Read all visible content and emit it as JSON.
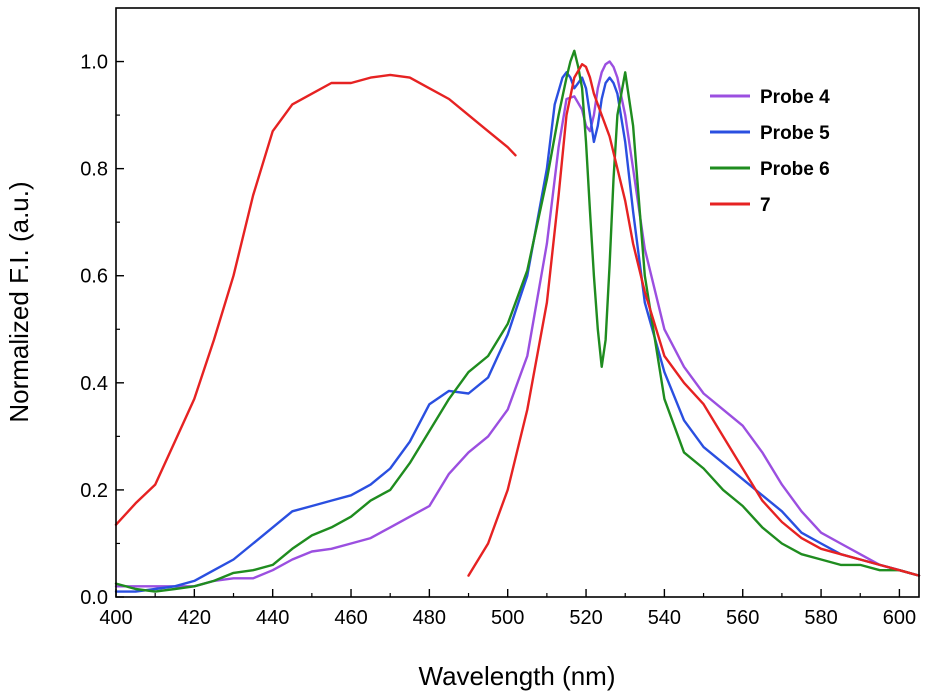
{
  "chart_data": {
    "type": "line",
    "title": "",
    "xlabel": "Wavelength (nm)",
    "ylabel": "Normalized F.I. (a.u.)",
    "xlim": [
      400,
      605
    ],
    "ylim": [
      0,
      1.1
    ],
    "xticks": [
      400,
      420,
      440,
      460,
      480,
      500,
      520,
      540,
      560,
      580,
      600
    ],
    "yticks": [
      0.0,
      0.2,
      0.4,
      0.6,
      0.8,
      1.0
    ],
    "ytick_labels": [
      "0.0",
      "0.2",
      "0.4",
      "0.6",
      "0.8",
      "1.0"
    ],
    "grid": false,
    "legend_position": "top-right",
    "series": [
      {
        "name": "Probe 4",
        "color": "#9b4fe0",
        "x": [
          400,
          405,
          410,
          415,
          420,
          425,
          430,
          435,
          440,
          445,
          450,
          455,
          460,
          465,
          470,
          475,
          480,
          485,
          490,
          495,
          500,
          505,
          510,
          513,
          515,
          517,
          519,
          520,
          521,
          522,
          523,
          524,
          525,
          526,
          527,
          528,
          530,
          532,
          535,
          540,
          545,
          550,
          555,
          560,
          565,
          570,
          575,
          580,
          585,
          590,
          595,
          600,
          605
        ],
        "y": [
          0.02,
          0.02,
          0.02,
          0.02,
          0.02,
          0.03,
          0.035,
          0.035,
          0.05,
          0.07,
          0.085,
          0.09,
          0.1,
          0.11,
          0.13,
          0.15,
          0.17,
          0.23,
          0.27,
          0.3,
          0.35,
          0.45,
          0.66,
          0.84,
          0.93,
          0.935,
          0.91,
          0.88,
          0.87,
          0.9,
          0.95,
          0.98,
          0.995,
          1.0,
          0.99,
          0.97,
          0.9,
          0.8,
          0.65,
          0.5,
          0.43,
          0.38,
          0.35,
          0.32,
          0.27,
          0.21,
          0.16,
          0.12,
          0.1,
          0.08,
          0.06,
          0.05,
          0.04
        ]
      },
      {
        "name": "Probe 5",
        "color": "#2a4fe0",
        "x": [
          400,
          405,
          410,
          415,
          420,
          425,
          430,
          435,
          440,
          445,
          450,
          455,
          460,
          465,
          470,
          475,
          480,
          485,
          490,
          495,
          500,
          505,
          510,
          512,
          514,
          515,
          516,
          517,
          518,
          519,
          520,
          521,
          522,
          523,
          524,
          525,
          526,
          527,
          528,
          530,
          532,
          535,
          540,
          545,
          550,
          555,
          560,
          565,
          570,
          575,
          580,
          585,
          590,
          595,
          600,
          605
        ],
        "y": [
          0.01,
          0.01,
          0.015,
          0.02,
          0.03,
          0.05,
          0.07,
          0.1,
          0.13,
          0.16,
          0.17,
          0.18,
          0.19,
          0.21,
          0.24,
          0.29,
          0.36,
          0.385,
          0.38,
          0.41,
          0.49,
          0.6,
          0.8,
          0.92,
          0.97,
          0.98,
          0.97,
          0.95,
          0.96,
          0.97,
          0.95,
          0.9,
          0.85,
          0.88,
          0.93,
          0.96,
          0.97,
          0.96,
          0.94,
          0.85,
          0.72,
          0.55,
          0.42,
          0.33,
          0.28,
          0.25,
          0.22,
          0.19,
          0.16,
          0.12,
          0.1,
          0.08,
          0.07,
          0.06,
          0.05,
          0.04
        ]
      },
      {
        "name": "Probe 6",
        "color": "#1f8c1f",
        "x": [
          400,
          405,
          410,
          415,
          420,
          425,
          430,
          435,
          440,
          445,
          450,
          455,
          460,
          465,
          470,
          475,
          480,
          485,
          490,
          495,
          500,
          505,
          510,
          513,
          515,
          516,
          517,
          518,
          519,
          520,
          521,
          522,
          523,
          524,
          525,
          526,
          527,
          528,
          530,
          532,
          535,
          540,
          545,
          550,
          555,
          560,
          565,
          570,
          575,
          580,
          585,
          590,
          595,
          600,
          605
        ],
        "y": [
          0.025,
          0.015,
          0.01,
          0.015,
          0.02,
          0.03,
          0.045,
          0.05,
          0.06,
          0.09,
          0.115,
          0.13,
          0.15,
          0.18,
          0.2,
          0.25,
          0.31,
          0.37,
          0.42,
          0.45,
          0.51,
          0.61,
          0.78,
          0.9,
          0.97,
          1.0,
          1.02,
          0.99,
          0.95,
          0.85,
          0.72,
          0.6,
          0.5,
          0.43,
          0.48,
          0.62,
          0.78,
          0.9,
          0.98,
          0.88,
          0.6,
          0.37,
          0.27,
          0.24,
          0.2,
          0.17,
          0.13,
          0.1,
          0.08,
          0.07,
          0.06,
          0.06,
          0.05,
          0.05,
          0.04
        ]
      },
      {
        "name": "7",
        "color": "#e62222",
        "x": [
          400,
          405,
          410,
          415,
          420,
          425,
          430,
          435,
          440,
          445,
          450,
          455,
          460,
          465,
          470,
          475,
          480,
          485,
          490,
          495,
          500,
          502,
          490,
          495,
          500,
          505,
          510,
          513,
          515,
          517,
          519,
          520,
          521,
          522,
          524,
          526,
          528,
          530,
          532,
          535,
          540,
          545,
          550,
          555,
          560,
          565,
          570,
          575,
          580,
          585,
          590,
          595,
          600,
          605
        ],
        "y": [
          0.135,
          0.175,
          0.21,
          0.29,
          0.37,
          0.48,
          0.6,
          0.75,
          0.87,
          0.92,
          0.94,
          0.96,
          0.96,
          0.97,
          0.975,
          0.97,
          0.95,
          0.93,
          0.9,
          0.87,
          0.84,
          0.825,
          0.04,
          0.1,
          0.2,
          0.35,
          0.55,
          0.75,
          0.9,
          0.97,
          0.995,
          0.99,
          0.97,
          0.94,
          0.9,
          0.86,
          0.8,
          0.74,
          0.66,
          0.57,
          0.45,
          0.4,
          0.36,
          0.3,
          0.24,
          0.18,
          0.14,
          0.11,
          0.09,
          0.08,
          0.07,
          0.06,
          0.05,
          0.04
        ]
      }
    ]
  }
}
